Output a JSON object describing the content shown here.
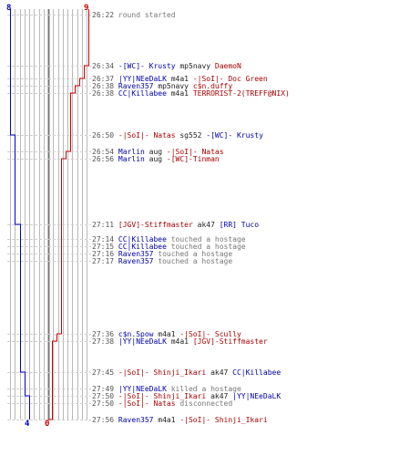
{
  "colors": {
    "ct": "#0000cc",
    "t": "#cc0000",
    "grid": "#b8b8b8",
    "center": "#777777",
    "dash": "#cfcfcf",
    "time": "#555555",
    "gray_text": "#777777"
  },
  "graph": {
    "top_ct_count": "8",
    "top_t_count": "9",
    "bottom_ct_count": "4",
    "bottom_t_count": "0"
  },
  "events": [
    {
      "time": "26:22",
      "parts": [
        {
          "text": "round started",
          "c": "gray"
        }
      ]
    },
    {
      "time": "26:34",
      "parts": [
        {
          "text": "-[WC]- Krusty",
          "c": "blue"
        },
        {
          "text": " mp5navy ",
          "c": "dark"
        },
        {
          "text": "DaemoN",
          "c": "red"
        }
      ]
    },
    {
      "time": "26:37",
      "parts": [
        {
          "text": "|YY|NEeDaLK",
          "c": "blue"
        },
        {
          "text": " m4a1 ",
          "c": "dark"
        },
        {
          "text": "-|SoI|- Doc Green",
          "c": "red"
        }
      ]
    },
    {
      "time": "26:38",
      "parts": [
        {
          "text": "Raven357",
          "c": "blue"
        },
        {
          "text": " mp5navy ",
          "c": "dark"
        },
        {
          "text": "c$n.duffy",
          "c": "red"
        }
      ]
    },
    {
      "time": "26:38",
      "parts": [
        {
          "text": "CC|Killabee",
          "c": "blue"
        },
        {
          "text": " m4a1 ",
          "c": "dark"
        },
        {
          "text": "TERRORIST-2(TREFF@NIX)",
          "c": "red"
        }
      ]
    },
    {
      "time": "26:50",
      "parts": [
        {
          "text": "-|SoI|- Natas",
          "c": "red"
        },
        {
          "text": " sg552 ",
          "c": "dark"
        },
        {
          "text": "-[WC]- Krusty",
          "c": "blue"
        }
      ]
    },
    {
      "time": "26:54",
      "parts": [
        {
          "text": "Marlin",
          "c": "blue"
        },
        {
          "text": " aug ",
          "c": "dark"
        },
        {
          "text": "-|SoI|- Natas",
          "c": "red"
        }
      ]
    },
    {
      "time": "26:56",
      "parts": [
        {
          "text": "Marlin",
          "c": "blue"
        },
        {
          "text": " aug ",
          "c": "dark"
        },
        {
          "text": "-[WC]-Tinman",
          "c": "red"
        }
      ]
    },
    {
      "time": "27:11",
      "parts": [
        {
          "text": "[JGV]-Stiffmaster",
          "c": "red"
        },
        {
          "text": " ak47 ",
          "c": "dark"
        },
        {
          "text": "[RR] Tuco",
          "c": "blue"
        }
      ]
    },
    {
      "time": "27:14",
      "parts": [
        {
          "text": "CC|Killabee",
          "c": "blue"
        },
        {
          "text": " touched a hostage",
          "c": "gray"
        }
      ]
    },
    {
      "time": "27:15",
      "parts": [
        {
          "text": "CC|Killabee",
          "c": "blue"
        },
        {
          "text": " touched a hostage",
          "c": "gray"
        }
      ]
    },
    {
      "time": "27:16",
      "parts": [
        {
          "text": "Raven357",
          "c": "blue"
        },
        {
          "text": " touched a hostage",
          "c": "gray"
        }
      ]
    },
    {
      "time": "27:17",
      "parts": [
        {
          "text": "Raven357",
          "c": "blue"
        },
        {
          "text": " touched a hostage",
          "c": "gray"
        }
      ]
    },
    {
      "time": "27:36",
      "parts": [
        {
          "text": "c$n.Spow",
          "c": "blue"
        },
        {
          "text": " m4a1 ",
          "c": "dark"
        },
        {
          "text": "-|SoI|- Scully",
          "c": "red"
        }
      ]
    },
    {
      "time": "27:38",
      "parts": [
        {
          "text": "|YY|NEeDaLK",
          "c": "blue"
        },
        {
          "text": " m4a1 ",
          "c": "dark"
        },
        {
          "text": "[JGV]-Stiffmaster",
          "c": "red"
        }
      ]
    },
    {
      "time": "27:45",
      "parts": [
        {
          "text": "-|SoI|- Shinji_Ikari",
          "c": "red"
        },
        {
          "text": " ak47 ",
          "c": "dark"
        },
        {
          "text": "CC|Killabee",
          "c": "blue"
        }
      ]
    },
    {
      "time": "27:49",
      "parts": [
        {
          "text": "|YY|NEeDaLK",
          "c": "blue"
        },
        {
          "text": " killed a hostage",
          "c": "gray"
        }
      ]
    },
    {
      "time": "27:50",
      "parts": [
        {
          "text": "-|SoI|- Shinji_Ikari",
          "c": "red"
        },
        {
          "text": " ak47 ",
          "c": "dark"
        },
        {
          "text": "|YY|NEeDaLK",
          "c": "blue"
        }
      ]
    },
    {
      "time": "27:50",
      "parts": [
        {
          "text": "-|SoI|- Natas",
          "c": "red"
        },
        {
          "text": " disconnected",
          "c": "gray"
        }
      ]
    },
    {
      "time": "27:56",
      "parts": [
        {
          "text": "Raven357",
          "c": "blue"
        },
        {
          "text": " m4a1 ",
          "c": "dark"
        },
        {
          "text": "-|SoI|- Shinji_Ikari",
          "c": "red"
        }
      ]
    }
  ]
}
